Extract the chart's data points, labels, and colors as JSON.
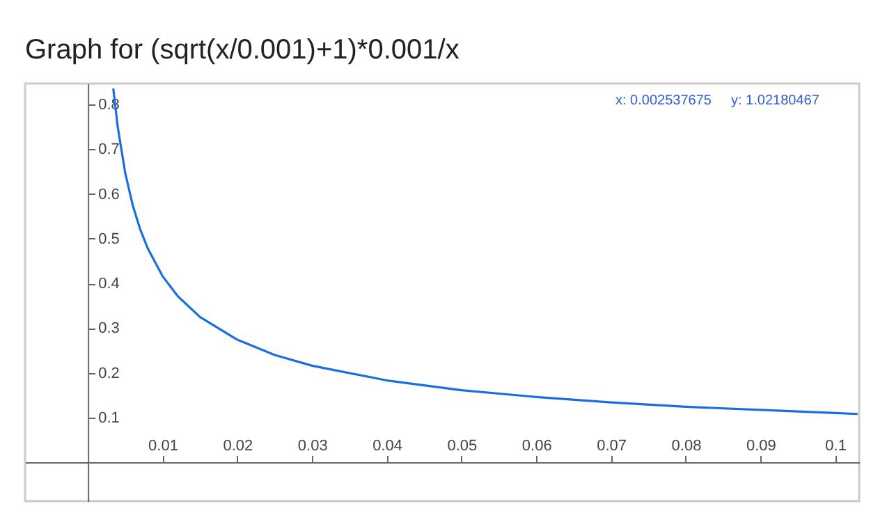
{
  "chart_data": {
    "type": "line",
    "title": "Graph for (sqrt(x/0.001)+1)*0.001/x",
    "x": [
      0.0034,
      0.004,
      0.005,
      0.006,
      0.007,
      0.008,
      0.01,
      0.012,
      0.015,
      0.02,
      0.025,
      0.03,
      0.04,
      0.05,
      0.06,
      0.07,
      0.08,
      0.09,
      0.1,
      0.103
    ],
    "series": [
      {
        "color": "#1a6fe0",
        "values": [
          0.836,
          0.75,
          0.647,
          0.575,
          0.521,
          0.479,
          0.416,
          0.372,
          0.325,
          0.274,
          0.24,
          0.216,
          0.183,
          0.161,
          0.146,
          0.134,
          0.124,
          0.117,
          0.11,
          0.108
        ]
      }
    ],
    "xlim": [
      -0.0084,
      0.1032
    ],
    "ylim": [
      -0.087,
      0.847
    ],
    "xticks": [
      0.01,
      0.02,
      0.03,
      0.04,
      0.05,
      0.06,
      0.07,
      0.08,
      0.09,
      0.1
    ],
    "yticks": [
      0.1,
      0.2,
      0.3,
      0.4,
      0.5,
      0.6,
      0.7,
      0.8
    ],
    "annotations": [
      "x: 0.002537675",
      "y: 1.02180467"
    ],
    "grid": false,
    "marker": "none",
    "line_style": "solid"
  }
}
